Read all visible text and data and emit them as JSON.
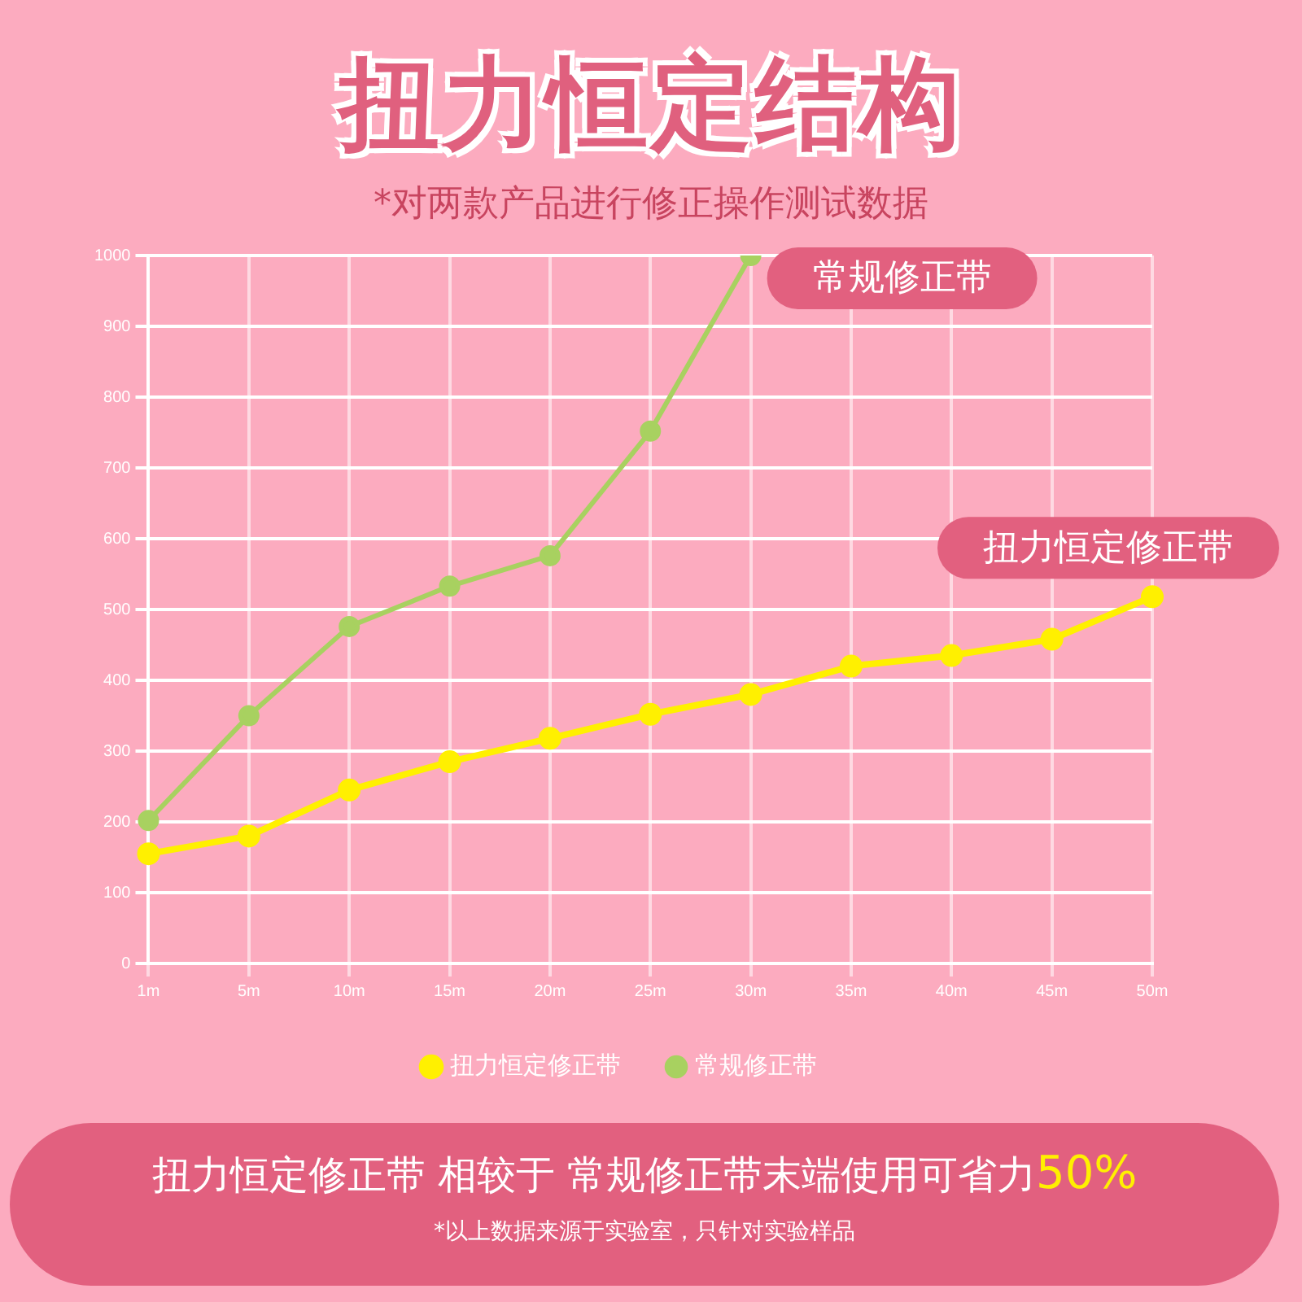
{
  "chart_data": {
    "type": "line",
    "title": "扭力恒定结构",
    "subtitle": "*对两款产品进行修正操作测试数据",
    "categories": [
      "1m",
      "5m",
      "10m",
      "15m",
      "20m",
      "25m",
      "30m",
      "35m",
      "40m",
      "45m",
      "50m"
    ],
    "series": [
      {
        "name": "扭力恒定修正带",
        "color": "#fff000",
        "values": [
          155,
          180,
          245,
          285,
          318,
          352,
          380,
          420,
          435,
          458,
          518
        ]
      },
      {
        "name": "常规修正带",
        "color": "#a8d160",
        "values": [
          202,
          350,
          476,
          533,
          576,
          752,
          1000,
          null,
          null,
          null,
          null
        ]
      }
    ],
    "ylim": [
      0,
      1000
    ],
    "yticks": [
      0,
      100,
      200,
      300,
      400,
      500,
      600,
      700,
      800,
      900,
      1000
    ],
    "grid": true,
    "legend": "bottom",
    "marker": "circle",
    "line_style": "solid",
    "annotations": [
      {
        "text": "常规修正带",
        "x": "30m",
        "y": 1000
      },
      {
        "text": "扭力恒定修正带",
        "x": "50m",
        "y": 518
      },
      "扭力恒定修正带 相较于 常规修正带末端使用可省力",
      "50%",
      "*以上数据来源于实验室，只针对实验样品"
    ]
  }
}
